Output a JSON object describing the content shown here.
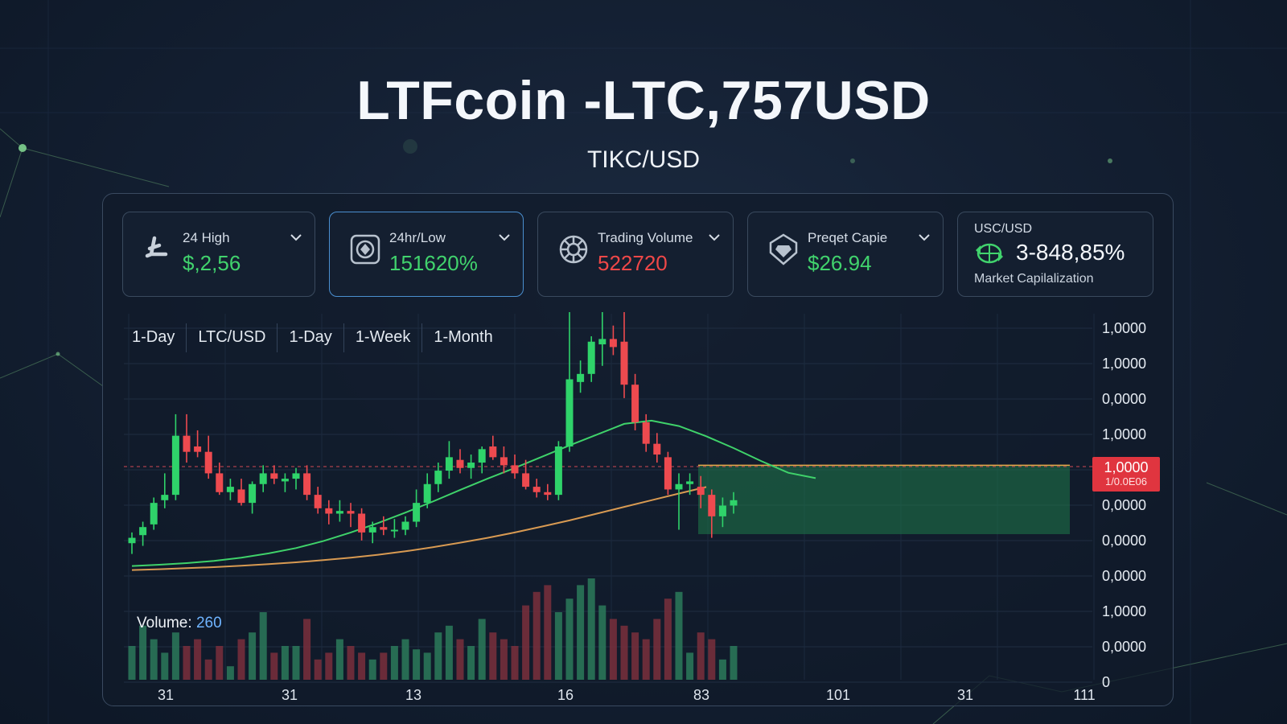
{
  "header": {
    "title": "LTFcoin -LTC,757USD",
    "subtitle": "TIKC/USD"
  },
  "cards": [
    {
      "label": "24 High",
      "value": "$,2,56",
      "icon": "litecoin-icon",
      "value_color": "green"
    },
    {
      "label": "24hr/Low",
      "value": "151620%",
      "icon": "coin-shield-icon",
      "value_color": "green"
    },
    {
      "label": "Trading Volume",
      "value": "522720",
      "icon": "gear-coin-icon",
      "value_color": "red"
    },
    {
      "label": "Preqet Capie",
      "value": "$26.94",
      "icon": "diamond-shield-icon",
      "value_color": "green"
    }
  ],
  "market_cap": {
    "pair": "USC/USD",
    "value": "3-848,85%",
    "caption": "Market Capilalization",
    "icon": "globe-arrows-icon"
  },
  "tabs": [
    "1-Day",
    "LTC/USD",
    "1-Day",
    "1-Week",
    "1-Month"
  ],
  "volume": {
    "label": "Volume:",
    "value": "260"
  },
  "price_tag": {
    "value": "1,0000",
    "sub": "1/0.0E06"
  },
  "colors": {
    "up": "#2fd36a",
    "down": "#ee4a4f",
    "accent": "#4a8fd0",
    "background": "#142033"
  },
  "chart_data": {
    "type": "candlestick",
    "y_tick_labels": [
      "1,0000",
      "1,0000",
      "0,0000",
      "1,0000",
      "1,0000",
      "0,0000",
      "0,0000",
      "0,0000",
      "1,0000",
      "0,0000",
      "0"
    ],
    "x_tick_labels": [
      "31",
      "31",
      "13",
      "16",
      "83",
      "101",
      "31",
      "111"
    ],
    "ylim": [
      0,
      100
    ],
    "grid": true,
    "candles": [
      {
        "o": 14,
        "h": 18,
        "l": 10,
        "c": 16
      },
      {
        "o": 17,
        "h": 22,
        "l": 13,
        "c": 20
      },
      {
        "o": 21,
        "h": 31,
        "l": 19,
        "c": 29
      },
      {
        "o": 30,
        "h": 40,
        "l": 27,
        "c": 32
      },
      {
        "o": 32,
        "h": 62,
        "l": 30,
        "c": 54
      },
      {
        "o": 54,
        "h": 62,
        "l": 44,
        "c": 48
      },
      {
        "o": 50,
        "h": 56,
        "l": 46,
        "c": 48
      },
      {
        "o": 48,
        "h": 54,
        "l": 38,
        "c": 40
      },
      {
        "o": 40,
        "h": 44,
        "l": 32,
        "c": 33
      },
      {
        "o": 33,
        "h": 38,
        "l": 30,
        "c": 35
      },
      {
        "o": 34,
        "h": 38,
        "l": 28,
        "c": 29
      },
      {
        "o": 29,
        "h": 37,
        "l": 25,
        "c": 36
      },
      {
        "o": 36,
        "h": 43,
        "l": 33,
        "c": 40
      },
      {
        "o": 40,
        "h": 43,
        "l": 36,
        "c": 38
      },
      {
        "o": 37,
        "h": 40,
        "l": 33,
        "c": 38
      },
      {
        "o": 38,
        "h": 42,
        "l": 34,
        "c": 40
      },
      {
        "o": 40,
        "h": 43,
        "l": 30,
        "c": 32
      },
      {
        "o": 32,
        "h": 35,
        "l": 25,
        "c": 27
      },
      {
        "o": 27,
        "h": 30,
        "l": 21,
        "c": 25
      },
      {
        "o": 25,
        "h": 30,
        "l": 22,
        "c": 26
      },
      {
        "o": 26,
        "h": 29,
        "l": 20,
        "c": 25
      },
      {
        "o": 25,
        "h": 27,
        "l": 15,
        "c": 18
      },
      {
        "o": 18,
        "h": 22,
        "l": 14,
        "c": 20
      },
      {
        "o": 20,
        "h": 24,
        "l": 17,
        "c": 19
      },
      {
        "o": 19,
        "h": 23,
        "l": 16,
        "c": 19
      },
      {
        "o": 19,
        "h": 24,
        "l": 17,
        "c": 22
      },
      {
        "o": 22,
        "h": 34,
        "l": 20,
        "c": 29
      },
      {
        "o": 29,
        "h": 40,
        "l": 27,
        "c": 36
      },
      {
        "o": 36,
        "h": 44,
        "l": 33,
        "c": 41
      },
      {
        "o": 41,
        "h": 52,
        "l": 38,
        "c": 46
      },
      {
        "o": 45,
        "h": 49,
        "l": 40,
        "c": 42
      },
      {
        "o": 42,
        "h": 47,
        "l": 38,
        "c": 44
      },
      {
        "o": 44,
        "h": 50,
        "l": 40,
        "c": 49
      },
      {
        "o": 50,
        "h": 54,
        "l": 45,
        "c": 46
      },
      {
        "o": 46,
        "h": 50,
        "l": 40,
        "c": 43
      },
      {
        "o": 43,
        "h": 47,
        "l": 38,
        "c": 40
      },
      {
        "o": 40,
        "h": 45,
        "l": 34,
        "c": 35
      },
      {
        "o": 35,
        "h": 38,
        "l": 31,
        "c": 33
      },
      {
        "o": 33,
        "h": 36,
        "l": 30,
        "c": 32
      },
      {
        "o": 32,
        "h": 52,
        "l": 30,
        "c": 50
      },
      {
        "o": 50,
        "h": 100,
        "l": 48,
        "c": 75
      },
      {
        "o": 74,
        "h": 82,
        "l": 70,
        "c": 77
      },
      {
        "o": 77,
        "h": 91,
        "l": 74,
        "c": 89
      },
      {
        "o": 88,
        "h": 100,
        "l": 80,
        "c": 90
      },
      {
        "o": 90,
        "h": 95,
        "l": 84,
        "c": 87
      },
      {
        "o": 89,
        "h": 100,
        "l": 68,
        "c": 73
      },
      {
        "o": 73,
        "h": 77,
        "l": 56,
        "c": 59
      },
      {
        "o": 59,
        "h": 62,
        "l": 48,
        "c": 51
      },
      {
        "o": 51,
        "h": 55,
        "l": 44,
        "c": 47
      },
      {
        "o": 46,
        "h": 48,
        "l": 32,
        "c": 34
      },
      {
        "o": 34,
        "h": 40,
        "l": 19,
        "c": 36
      },
      {
        "o": 36,
        "h": 40,
        "l": 32,
        "c": 37
      },
      {
        "o": 35,
        "h": 39,
        "l": 27,
        "c": 32
      },
      {
        "o": 32,
        "h": 34,
        "l": 16,
        "c": 24
      },
      {
        "o": 24,
        "h": 31,
        "l": 20,
        "c": 28
      },
      {
        "o": 28,
        "h": 33,
        "l": 25,
        "c": 30
      }
    ],
    "volumes": [
      10,
      16,
      12,
      8,
      14,
      10,
      12,
      6,
      10,
      4,
      12,
      14,
      20,
      8,
      10,
      10,
      18,
      6,
      8,
      12,
      10,
      8,
      6,
      8,
      10,
      12,
      9,
      8,
      14,
      16,
      12,
      10,
      18,
      14,
      12,
      10,
      22,
      26,
      28,
      20,
      24,
      28,
      30,
      22,
      18,
      16,
      14,
      12,
      18,
      24,
      26,
      8,
      14,
      12,
      6,
      10
    ],
    "ma_long_y": [
      4,
      4.3,
      4.7,
      5.1,
      5.6,
      6.2,
      6.9,
      7.7,
      8.6,
      9.7,
      11,
      12.5,
      14.2,
      16,
      18,
      20.2,
      22.5,
      25,
      27.5,
      30,
      32.5,
      34.9
    ],
    "ma_fast_y": [
      5.5,
      6,
      6.6,
      7.4,
      8.6,
      10.2,
      12.2,
      14.8,
      18,
      21.5,
      25.4,
      29.5,
      33.8,
      38,
      42,
      46.2,
      50.4,
      54.4,
      58.4,
      59.6,
      57.6,
      53.8,
      49.4,
      44.6,
      40.2,
      38.2
    ],
    "projection_level": 43,
    "dashed_level": 42.5
  }
}
